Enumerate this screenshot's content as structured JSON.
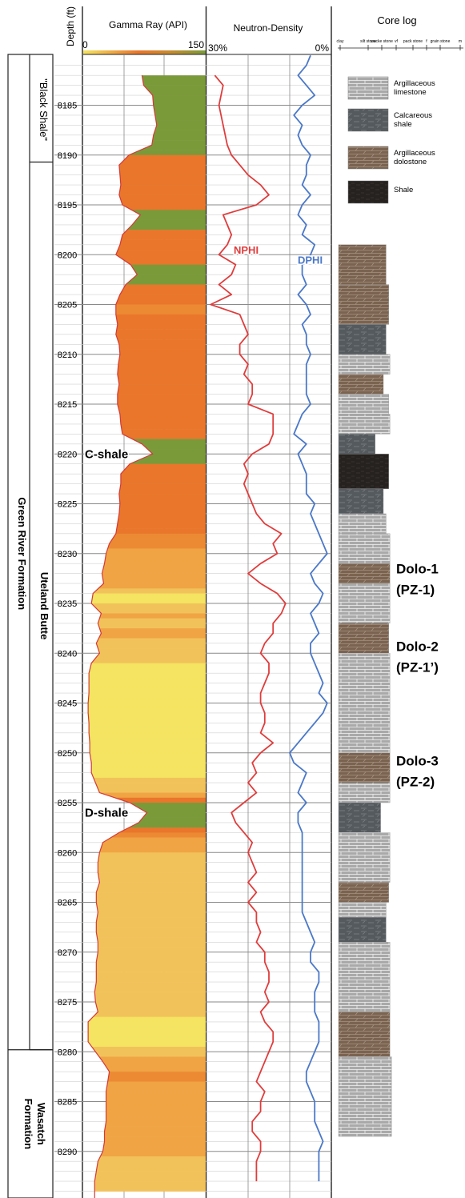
{
  "chart_data": {
    "type": "well-log",
    "depth_axis": {
      "label": "Depth (ft)",
      "range": [
        8180.2,
        8294
      ],
      "ticks": [
        8185,
        8190,
        8195,
        8200,
        8205,
        8210,
        8215,
        8220,
        8225,
        8230,
        8235,
        8240,
        8245,
        8250,
        8255,
        8260,
        8265,
        8270,
        8275,
        8280,
        8285,
        8290
      ],
      "tick_labels": [
        "8185",
        "8190",
        "8195",
        "8200",
        "8205",
        "8210",
        "8215",
        "8220",
        "8225",
        "8230",
        "8235",
        "8240",
        "8245",
        "8250",
        "8255",
        "8260",
        "8265",
        "8270",
        "8275",
        "8280",
        "8285",
        "8290"
      ]
    },
    "formations": [
      {
        "name": "Green River Formation",
        "top": 8180.2,
        "base": 8279.8
      },
      {
        "name": "Wasatch Formation",
        "top": 8279.8,
        "base": 8294
      }
    ],
    "members": [
      {
        "name": "\"Black Shale\"",
        "top": 8180.2,
        "base": 8190.7
      },
      {
        "name": "Uteland Butte",
        "top": 8190.7,
        "base": 8279.8
      }
    ],
    "gamma_ray": {
      "title": "Gamma Ray (API)",
      "scale_min": 0,
      "scale_max": 150,
      "scale_min_label": "0",
      "scale_max_label": "150",
      "depth": [
        8182,
        8183,
        8184,
        8185,
        8186,
        8187,
        8188,
        8189,
        8190,
        8191,
        8192,
        8193,
        8194,
        8195,
        8196,
        8197,
        8198,
        8199,
        8200,
        8201,
        8202,
        8203,
        8204,
        8205,
        8206,
        8207,
        8208,
        8209,
        8210,
        8211,
        8212,
        8213,
        8214,
        8215,
        8216,
        8217,
        8218,
        8219,
        8220,
        8221,
        8222,
        8223,
        8224,
        8225,
        8226,
        8227,
        8228,
        8229,
        8230,
        8231,
        8232,
        8233,
        8234,
        8235,
        8236,
        8237,
        8238,
        8239,
        8240,
        8241,
        8242,
        8243,
        8244,
        8245,
        8246,
        8247,
        8248,
        8249,
        8250,
        8251,
        8252,
        8253,
        8254,
        8255,
        8256,
        8257,
        8258,
        8259,
        8260,
        8261,
        8262,
        8263,
        8264,
        8265,
        8266,
        8267,
        8268,
        8269,
        8270,
        8271,
        8272,
        8273,
        8274,
        8275,
        8276,
        8277,
        8278,
        8279,
        8280,
        8281,
        8282,
        8283,
        8284,
        8285,
        8286,
        8287,
        8288,
        8289,
        8290,
        8291,
        8292,
        8293
      ],
      "value": [
        72,
        74,
        85,
        86,
        88,
        90,
        86,
        84,
        56,
        44,
        45,
        46,
        44,
        48,
        70,
        60,
        48,
        45,
        40,
        58,
        66,
        52,
        45,
        40,
        40,
        42,
        40,
        44,
        45,
        43,
        42,
        44,
        42,
        42,
        45,
        46,
        48,
        72,
        85,
        57,
        46,
        46,
        44,
        45,
        44,
        42,
        40,
        32,
        28,
        26,
        23,
        25,
        12,
        10,
        22,
        18,
        22,
        16,
        20,
        10,
        7,
        7,
        7,
        6,
        6,
        7,
        7,
        8,
        8,
        10,
        10,
        15,
        20,
        57,
        78,
        68,
        44,
        24,
        20,
        18,
        18,
        20,
        16,
        16,
        18,
        16,
        16,
        18,
        18,
        16,
        16,
        16,
        14,
        15,
        18,
        6,
        6,
        6,
        15,
        24,
        32,
        30,
        28,
        28,
        28,
        28,
        26,
        26,
        24,
        18,
        16,
        14
      ],
      "annotations": [
        "C-shale",
        "D-shale"
      ],
      "annotation_depths": [
        8220,
        8256
      ]
    },
    "neutron_density": {
      "title": "Neutron-Density",
      "scale_left_label": "30%",
      "scale_right_label": "0%",
      "scale_left_value": 30,
      "scale_right_value": 0,
      "series": [
        {
          "name": "NPHI",
          "color": "#e03c3c",
          "depth": [
            8182,
            8183,
            8185,
            8187,
            8189,
            8190,
            8191,
            8192,
            8193,
            8194,
            8195,
            8196,
            8197,
            8198,
            8199,
            8200,
            8201,
            8202,
            8203,
            8204,
            8205,
            8206,
            8207,
            8208,
            8209,
            8210,
            8211,
            8212,
            8213,
            8214,
            8215,
            8216,
            8217,
            8218,
            8219,
            8220,
            8221,
            8222,
            8223,
            8224,
            8225,
            8226,
            8227,
            8228,
            8229,
            8230,
            8231,
            8232,
            8233,
            8234,
            8235,
            8236,
            8237,
            8238,
            8239,
            8240,
            8241,
            8242,
            8243,
            8244,
            8245,
            8246,
            8247,
            8248,
            8249,
            8250,
            8251,
            8252,
            8253,
            8254,
            8255,
            8256,
            8257,
            8258,
            8259,
            8260,
            8261,
            8262,
            8263,
            8264,
            8265,
            8266,
            8267,
            8268,
            8269,
            8270,
            8271,
            8272,
            8273,
            8274,
            8275,
            8276,
            8277,
            8278,
            8279,
            8280,
            8281,
            8282,
            8283,
            8284,
            8285,
            8286,
            8287,
            8288,
            8289,
            8290,
            8291,
            8292,
            8293
          ],
          "value": [
            28,
            26,
            27,
            26,
            25,
            24,
            22,
            20,
            17,
            15,
            18,
            26,
            25,
            24,
            25,
            27,
            23,
            24,
            27,
            24,
            29,
            22,
            21,
            20,
            22,
            22,
            20,
            21,
            19,
            19,
            20,
            14,
            14,
            14,
            15,
            19,
            21,
            20,
            21,
            20,
            19,
            18,
            16,
            12,
            14,
            13,
            17,
            20,
            17,
            13,
            11,
            12,
            14,
            14,
            16,
            17,
            15,
            15,
            16,
            17,
            17,
            16,
            16,
            17,
            14,
            17,
            19,
            18,
            20,
            18,
            21,
            24,
            23,
            21,
            19,
            20,
            19,
            18,
            20,
            18,
            20,
            18,
            18,
            17,
            18,
            16,
            16,
            15,
            15,
            16,
            15,
            17,
            16,
            14,
            14,
            15,
            16,
            17,
            18,
            16,
            17,
            17,
            19,
            19,
            17,
            17,
            18,
            18,
            18
          ],
          "label": "NPHI",
          "label_depth": 8199.5
        },
        {
          "name": "DPHI",
          "color": "#4a78c8",
          "depth": [
            8180,
            8181,
            8182,
            8183,
            8184,
            8185,
            8186,
            8187,
            8188,
            8189,
            8190,
            8191,
            8192,
            8193,
            8194,
            8195,
            8196,
            8197,
            8198,
            8199,
            8200,
            8201,
            8202,
            8203,
            8204,
            8205,
            8206,
            8207,
            8208,
            8209,
            8210,
            8211,
            8212,
            8213,
            8214,
            8215,
            8216,
            8217,
            8218,
            8219,
            8220,
            8221,
            8222,
            8223,
            8224,
            8225,
            8226,
            8227,
            8228,
            8229,
            8230,
            8231,
            8232,
            8233,
            8234,
            8235,
            8236,
            8237,
            8238,
            8239,
            8240,
            8241,
            8242,
            8243,
            8244,
            8245,
            8246,
            8247,
            8248,
            8249,
            8250,
            8251,
            8252,
            8253,
            8254,
            8255,
            8256,
            8257,
            8258,
            8259,
            8260,
            8261,
            8262,
            8263,
            8264,
            8265,
            8266,
            8267,
            8268,
            8269,
            8270,
            8271,
            8272,
            8273,
            8274,
            8275,
            8276,
            8277,
            8278,
            8279,
            8280,
            8281,
            8282,
            8283,
            8284,
            8285,
            8286,
            8287,
            8288,
            8289,
            8290,
            8291,
            8292,
            8293
          ],
          "value": [
            5,
            6,
            8,
            6,
            4,
            7,
            9,
            7,
            8,
            7,
            5,
            6,
            6,
            7,
            5,
            7,
            8,
            6,
            7,
            4,
            5,
            7,
            7,
            6,
            8,
            6,
            5,
            7,
            6,
            6,
            5,
            6,
            6,
            6,
            6,
            5,
            7,
            8,
            9,
            6,
            8,
            7,
            6,
            6,
            6,
            4,
            5,
            4,
            3,
            2,
            1,
            3,
            5,
            4,
            2,
            3,
            5,
            4,
            3,
            5,
            5,
            4,
            3,
            2,
            3,
            1,
            2,
            4,
            6,
            8,
            10,
            9,
            6,
            7,
            8,
            6,
            8,
            8,
            7,
            7,
            7,
            7,
            7,
            7,
            7,
            7,
            7,
            6,
            5,
            4,
            5,
            5,
            3,
            3,
            4,
            4,
            4,
            3,
            3,
            3,
            4,
            5,
            6,
            6,
            5,
            4,
            4,
            4,
            3,
            2,
            3,
            3,
            3,
            3
          ],
          "label": "DPHI",
          "label_depth": 8200.5
        }
      ]
    },
    "core_log": {
      "title": "Core log",
      "scale_labels": [
        "clay",
        "silt stone",
        "wacke stone",
        "vf",
        "pack stone",
        "f",
        "grain stone",
        "m"
      ],
      "legend": [
        {
          "label": "Argillaceous limestone",
          "type": "limestone"
        },
        {
          "label": "Calcareous shale",
          "type": "calc-shale"
        },
        {
          "label": "Argillaceous dolostone",
          "type": "dolostone"
        },
        {
          "label": "Shale",
          "type": "shale"
        }
      ],
      "intervals": [
        {
          "top": 8199,
          "base": 8203,
          "type": "dolostone",
          "grain": 0.55
        },
        {
          "top": 8203,
          "base": 8207,
          "type": "dolostone",
          "grain": 0.6
        },
        {
          "top": 8207,
          "base": 8210,
          "type": "calc-shale",
          "grain": 0.55
        },
        {
          "top": 8210,
          "base": 8212,
          "type": "limestone",
          "grain": 0.62
        },
        {
          "top": 8212,
          "base": 8214,
          "type": "dolostone",
          "grain": 0.5
        },
        {
          "top": 8214,
          "base": 8216,
          "type": "limestone",
          "grain": 0.6
        },
        {
          "top": 8216,
          "base": 8218,
          "type": "limestone",
          "grain": 0.62
        },
        {
          "top": 8218,
          "base": 8220,
          "type": "calc-shale",
          "grain": 0.35
        },
        {
          "top": 8220,
          "base": 8223.5,
          "type": "shale",
          "grain": 0.6
        },
        {
          "top": 8223.5,
          "base": 8226,
          "type": "calc-shale",
          "grain": 0.5
        },
        {
          "top": 8226,
          "base": 8228,
          "type": "limestone",
          "grain": 0.55
        },
        {
          "top": 8228,
          "base": 8231,
          "type": "limestone",
          "grain": 0.62
        },
        {
          "top": 8231,
          "base": 8233,
          "type": "dolostone",
          "grain": 0.62
        },
        {
          "top": 8233,
          "base": 8237,
          "type": "limestone",
          "grain": 0.62
        },
        {
          "top": 8237,
          "base": 8240,
          "type": "dolostone",
          "grain": 0.6
        },
        {
          "top": 8240,
          "base": 8250,
          "type": "limestone",
          "grain": 0.62
        },
        {
          "top": 8250,
          "base": 8253,
          "type": "dolostone",
          "grain": 0.62
        },
        {
          "top": 8253,
          "base": 8255,
          "type": "limestone",
          "grain": 0.62
        },
        {
          "top": 8255,
          "base": 8258,
          "type": "calc-shale",
          "grain": 0.45
        },
        {
          "top": 8258,
          "base": 8263,
          "type": "limestone",
          "grain": 0.62
        },
        {
          "top": 8263,
          "base": 8265,
          "type": "dolostone",
          "grain": 0.6
        },
        {
          "top": 8265,
          "base": 8266.5,
          "type": "limestone",
          "grain": 0.55
        },
        {
          "top": 8266.5,
          "base": 8269,
          "type": "calc-shale",
          "grain": 0.55
        },
        {
          "top": 8269,
          "base": 8274,
          "type": "limestone",
          "grain": 0.62
        },
        {
          "top": 8274,
          "base": 8276,
          "type": "limestone",
          "grain": 0.62
        },
        {
          "top": 8276,
          "base": 8280.5,
          "type": "dolostone",
          "grain": 0.62
        },
        {
          "top": 8280.5,
          "base": 8288.5,
          "type": "limestone",
          "grain": 0.65
        }
      ],
      "zones": [
        {
          "label": "Dolo-1",
          "sublabel": "(PZ-1)",
          "depth": 8232.3
        },
        {
          "label": "Dolo-2",
          "sublabel": "(PZ-1’)",
          "depth": 8240.1
        },
        {
          "label": "Dolo-3",
          "sublabel": "(PZ-2)",
          "depth": 8251.6
        }
      ]
    }
  },
  "colors": {
    "gr_yellow": "#f4e461",
    "gr_orange": "#e9762b",
    "gr_green": "#7a9a3a",
    "nphi": "#e03c3c",
    "dphi": "#4a78c8",
    "grid": "#d0d0d0",
    "axis": "#222222"
  }
}
